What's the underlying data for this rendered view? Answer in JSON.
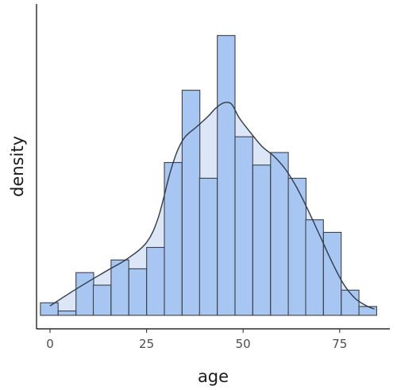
{
  "chart_data": {
    "type": "bar",
    "subtype": "histogram-with-density",
    "title": "",
    "xlabel": "age",
    "ylabel": "density",
    "xlim": [
      -3.5,
      88
    ],
    "ylim": [
      0,
      0.0475
    ],
    "x_ticks": [
      0,
      25,
      50,
      75
    ],
    "x_tick_labels": [
      "0",
      "25",
      "50",
      "75"
    ],
    "y_ticks_shown": false,
    "grid": false,
    "legend": "none",
    "bin_width": 4.58,
    "bins": [
      {
        "center": -0.2,
        "density": 0.002
      },
      {
        "center": 4.4,
        "density": 0.0007
      },
      {
        "center": 9.0,
        "density": 0.0068
      },
      {
        "center": 13.5,
        "density": 0.0048
      },
      {
        "center": 18.1,
        "density": 0.0088
      },
      {
        "center": 22.7,
        "density": 0.0074
      },
      {
        "center": 27.3,
        "density": 0.0108
      },
      {
        "center": 31.9,
        "density": 0.0243
      },
      {
        "center": 36.5,
        "density": 0.0358
      },
      {
        "center": 41.0,
        "density": 0.0218
      },
      {
        "center": 45.6,
        "density": 0.0445
      },
      {
        "center": 50.2,
        "density": 0.0284
      },
      {
        "center": 54.8,
        "density": 0.0239
      },
      {
        "center": 59.4,
        "density": 0.0259
      },
      {
        "center": 64.0,
        "density": 0.0218
      },
      {
        "center": 68.5,
        "density": 0.0152
      },
      {
        "center": 73.1,
        "density": 0.0132
      },
      {
        "center": 77.7,
        "density": 0.004
      },
      {
        "center": 82.3,
        "density": 0.0014
      }
    ],
    "density_curve": {
      "x": [
        0,
        5,
        10,
        15,
        20,
        25,
        28,
        31,
        33,
        35,
        38,
        41,
        43,
        45,
        47,
        49,
        52,
        55,
        58,
        61,
        64,
        67,
        70,
        73,
        76,
        79,
        82,
        84
      ],
      "y": [
        0.0015,
        0.0035,
        0.0054,
        0.0072,
        0.009,
        0.0116,
        0.0155,
        0.0225,
        0.0262,
        0.0284,
        0.03,
        0.0317,
        0.033,
        0.0338,
        0.0336,
        0.0314,
        0.029,
        0.0268,
        0.0253,
        0.0232,
        0.0202,
        0.0165,
        0.0125,
        0.0085,
        0.005,
        0.0027,
        0.0015,
        0.001
      ]
    },
    "colors": {
      "bar_fill": "#a8c6f2",
      "bar_stroke": "#3d4046",
      "density_fill": "#dce6f6",
      "density_line": "#2f3b45",
      "axis": "#000000"
    }
  }
}
